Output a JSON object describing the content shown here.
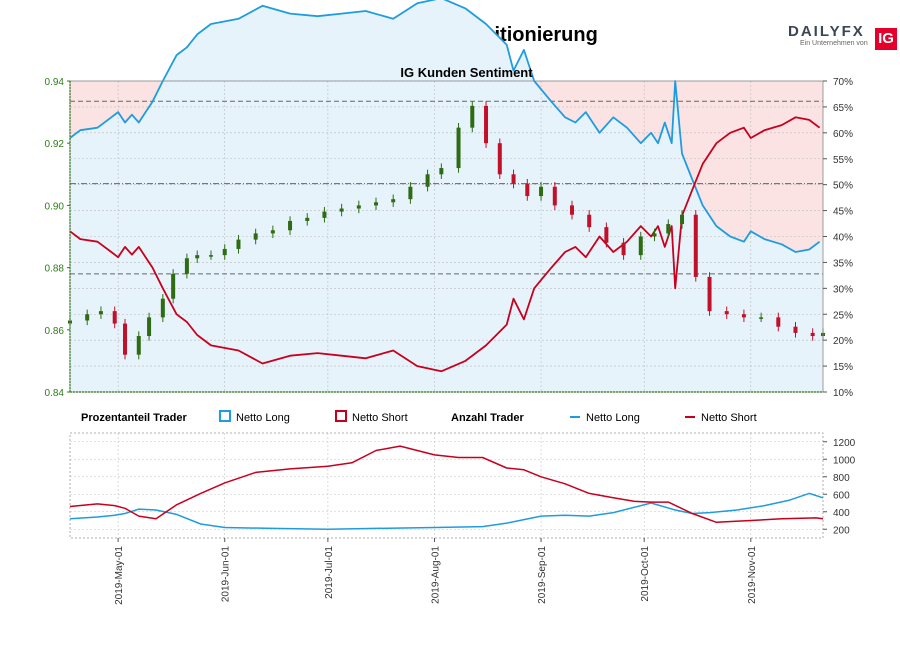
{
  "header": {
    "title": "EUR/GBP Kundenpositionierung",
    "logo_text": "DAILYFX",
    "logo_sub": "Ein Unternehmen von",
    "logo_badge": "IG"
  },
  "legend": {
    "group1": "Prozentanteil Trader",
    "group2": "Anzahl Trader",
    "long": "Netto Long",
    "short": "Netto Short"
  },
  "colors": {
    "long": "#1f9ce0",
    "short": "#c8001e",
    "long_fill": "#e6f3fb",
    "short_fill": "#fbe3e4",
    "axis_left": "#2e7d1a",
    "candle_up": "#2e6b12",
    "candle_down": "#c0102a"
  },
  "chart_data": [
    {
      "type": "line",
      "subtitle": "IG Kunden Sentiment",
      "price_axis": {
        "ylim": [
          0.84,
          0.94
        ],
        "ticks": [
          "0.84",
          "0.86",
          "0.88",
          "0.90",
          "0.92",
          "0.94"
        ]
      },
      "percent_axis": {
        "ylim": [
          10,
          70
        ],
        "ticks": [
          "10%",
          "15%",
          "20%",
          "25%",
          "30%",
          "35%",
          "40%",
          "45%",
          "50%",
          "55%",
          "60%",
          "65%",
          "70%"
        ]
      },
      "x_ticks": [
        "2019-May-01",
        "2019-Jun-01",
        "2019-Jul-01",
        "2019-Aug-01",
        "2019-Sep-01",
        "2019-Oct-01",
        "2019-Nov-01"
      ],
      "x_range": [
        "2019-Apr-17",
        "2019-Nov-22"
      ],
      "reference_lines": [
        {
          "price": 0.9335,
          "style": "dashed"
        },
        {
          "price": 0.907,
          "style": "dash-dot"
        },
        {
          "price": 0.878,
          "style": "dashed"
        }
      ],
      "series": [
        {
          "name": "Netto Long",
          "unit": "%",
          "x": [
            "2019-Apr-17",
            "2019-Apr-20",
            "2019-Apr-25",
            "2019-Apr-29",
            "2019-May-01",
            "2019-May-03",
            "2019-May-05",
            "2019-May-07",
            "2019-May-09",
            "2019-May-11",
            "2019-May-14",
            "2019-May-18",
            "2019-May-21",
            "2019-May-24",
            "2019-May-28",
            "2019-Jun-05",
            "2019-Jun-12",
            "2019-Jun-20",
            "2019-Jun-28",
            "2019-Jul-05",
            "2019-Jul-12",
            "2019-Jul-20",
            "2019-Jul-27",
            "2019-Aug-03",
            "2019-Aug-10",
            "2019-Aug-16",
            "2019-Aug-22",
            "2019-Aug-24",
            "2019-Aug-27",
            "2019-Aug-30",
            "2019-Sep-04",
            "2019-Sep-08",
            "2019-Sep-11",
            "2019-Sep-14",
            "2019-Sep-18",
            "2019-Sep-22",
            "2019-Sep-26",
            "2019-Sep-30",
            "2019-Oct-03",
            "2019-Oct-05",
            "2019-Oct-07",
            "2019-Oct-09",
            "2019-Oct-10",
            "2019-Oct-12",
            "2019-Oct-15",
            "2019-Oct-18",
            "2019-Oct-22",
            "2019-Oct-26",
            "2019-Oct-30",
            "2019-Nov-01",
            "2019-Nov-05",
            "2019-Nov-10",
            "2019-Nov-14",
            "2019-Nov-18",
            "2019-Nov-21"
          ],
          "y": [
            59,
            60.5,
            61,
            63,
            64,
            62,
            63.5,
            62,
            64,
            66,
            70,
            75,
            76.5,
            79,
            81,
            82,
            84.5,
            83,
            82.5,
            83,
            83.5,
            82,
            85,
            86,
            84,
            81,
            77,
            72,
            76,
            70,
            66,
            63,
            62,
            64,
            60,
            63,
            61,
            58,
            60,
            58,
            62,
            58,
            70,
            56,
            51,
            46,
            42,
            40,
            39,
            41,
            39.5,
            38.5,
            37,
            37.5,
            39
          ]
        },
        {
          "name": "Netto Short",
          "unit": "%",
          "x": [
            "2019-Apr-17",
            "2019-Apr-20",
            "2019-Apr-25",
            "2019-Apr-29",
            "2019-May-01",
            "2019-May-03",
            "2019-May-05",
            "2019-May-07",
            "2019-May-09",
            "2019-May-11",
            "2019-May-14",
            "2019-May-18",
            "2019-May-21",
            "2019-May-24",
            "2019-May-28",
            "2019-Jun-05",
            "2019-Jun-12",
            "2019-Jun-20",
            "2019-Jun-28",
            "2019-Jul-05",
            "2019-Jul-12",
            "2019-Jul-20",
            "2019-Jul-27",
            "2019-Aug-03",
            "2019-Aug-10",
            "2019-Aug-16",
            "2019-Aug-22",
            "2019-Aug-24",
            "2019-Aug-27",
            "2019-Aug-30",
            "2019-Sep-04",
            "2019-Sep-08",
            "2019-Sep-11",
            "2019-Sep-14",
            "2019-Sep-18",
            "2019-Sep-22",
            "2019-Sep-26",
            "2019-Sep-30",
            "2019-Oct-03",
            "2019-Oct-05",
            "2019-Oct-07",
            "2019-Oct-09",
            "2019-Oct-10",
            "2019-Oct-12",
            "2019-Oct-15",
            "2019-Oct-18",
            "2019-Oct-22",
            "2019-Oct-26",
            "2019-Oct-30",
            "2019-Nov-01",
            "2019-Nov-05",
            "2019-Nov-10",
            "2019-Nov-14",
            "2019-Nov-18",
            "2019-Nov-21"
          ],
          "y": [
            41,
            39.5,
            39,
            37,
            36,
            38,
            36.5,
            38,
            36,
            34,
            30,
            25,
            23.5,
            21,
            19,
            18,
            15.5,
            17,
            17.5,
            17,
            16.5,
            18,
            15,
            14,
            16,
            19,
            23,
            28,
            24,
            30,
            34,
            37,
            38,
            36,
            40,
            37,
            39,
            42,
            40,
            42,
            38,
            42,
            30,
            44,
            49,
            54,
            58,
            60,
            61,
            59,
            60.5,
            61.5,
            63,
            62.5,
            61
          ]
        },
        {
          "name": "EUR/GBP",
          "type": "candlestick",
          "x": [
            "2019-Apr-17",
            "2019-Apr-22",
            "2019-Apr-26",
            "2019-Apr-30",
            "2019-May-03",
            "2019-May-07",
            "2019-May-10",
            "2019-May-14",
            "2019-May-17",
            "2019-May-21",
            "2019-May-24",
            "2019-May-28",
            "2019-Jun-01",
            "2019-Jun-05",
            "2019-Jun-10",
            "2019-Jun-15",
            "2019-Jun-20",
            "2019-Jun-25",
            "2019-Jun-30",
            "2019-Jul-05",
            "2019-Jul-10",
            "2019-Jul-15",
            "2019-Jul-20",
            "2019-Jul-25",
            "2019-Jul-30",
            "2019-Aug-03",
            "2019-Aug-08",
            "2019-Aug-12",
            "2019-Aug-16",
            "2019-Aug-20",
            "2019-Aug-24",
            "2019-Aug-28",
            "2019-Sep-01",
            "2019-Sep-05",
            "2019-Sep-10",
            "2019-Sep-15",
            "2019-Sep-20",
            "2019-Sep-25",
            "2019-Sep-30",
            "2019-Oct-04",
            "2019-Oct-08",
            "2019-Oct-12",
            "2019-Oct-16",
            "2019-Oct-20",
            "2019-Oct-25",
            "2019-Oct-30",
            "2019-Nov-04",
            "2019-Nov-09",
            "2019-Nov-14",
            "2019-Nov-19",
            "2019-Nov-22"
          ],
          "close": [
            0.863,
            0.865,
            0.866,
            0.862,
            0.852,
            0.858,
            0.864,
            0.87,
            0.878,
            0.883,
            0.884,
            0.884,
            0.886,
            0.889,
            0.891,
            0.892,
            0.895,
            0.896,
            0.898,
            0.899,
            0.9,
            0.901,
            0.902,
            0.906,
            0.91,
            0.912,
            0.925,
            0.932,
            0.92,
            0.91,
            0.907,
            0.903,
            0.906,
            0.9,
            0.897,
            0.893,
            0.888,
            0.884,
            0.89,
            0.891,
            0.894,
            0.897,
            0.877,
            0.866,
            0.865,
            0.864,
            0.864,
            0.861,
            0.859,
            0.858,
            0.859
          ]
        }
      ]
    },
    {
      "type": "line",
      "y_axis": {
        "ylim": [
          100,
          1300
        ],
        "ticks": [
          "200",
          "400",
          "600",
          "800",
          "1000",
          "1200"
        ]
      },
      "series": [
        {
          "name": "Netto Long",
          "x": [
            "2019-Apr-17",
            "2019-Apr-25",
            "2019-Apr-30",
            "2019-May-03",
            "2019-May-07",
            "2019-May-12",
            "2019-May-18",
            "2019-May-25",
            "2019-Jun-01",
            "2019-Jun-15",
            "2019-Jul-01",
            "2019-Jul-15",
            "2019-Aug-01",
            "2019-Aug-15",
            "2019-Aug-22",
            "2019-Aug-27",
            "2019-Sep-01",
            "2019-Sep-08",
            "2019-Sep-15",
            "2019-Sep-22",
            "2019-Sep-28",
            "2019-Oct-03",
            "2019-Oct-10",
            "2019-Oct-15",
            "2019-Oct-20",
            "2019-Oct-28",
            "2019-Nov-05",
            "2019-Nov-12",
            "2019-Nov-18",
            "2019-Nov-22"
          ],
          "y": [
            320,
            340,
            360,
            380,
            430,
            420,
            370,
            260,
            220,
            210,
            200,
            210,
            220,
            230,
            270,
            310,
            350,
            360,
            350,
            390,
            450,
            500,
            420,
            380,
            390,
            420,
            470,
            530,
            610,
            560
          ]
        },
        {
          "name": "Netto Short",
          "x": [
            "2019-Apr-17",
            "2019-Apr-25",
            "2019-Apr-30",
            "2019-May-03",
            "2019-May-07",
            "2019-May-12",
            "2019-May-18",
            "2019-May-25",
            "2019-Jun-01",
            "2019-Jun-10",
            "2019-Jun-20",
            "2019-Jul-01",
            "2019-Jul-08",
            "2019-Jul-15",
            "2019-Jul-22",
            "2019-Aug-01",
            "2019-Aug-08",
            "2019-Aug-15",
            "2019-Aug-22",
            "2019-Aug-27",
            "2019-Sep-01",
            "2019-Sep-08",
            "2019-Sep-15",
            "2019-Sep-22",
            "2019-Sep-28",
            "2019-Oct-03",
            "2019-Oct-08",
            "2019-Oct-15",
            "2019-Oct-22",
            "2019-Nov-01",
            "2019-Nov-10",
            "2019-Nov-20",
            "2019-Nov-22"
          ],
          "y": [
            460,
            490,
            470,
            440,
            350,
            320,
            480,
            610,
            730,
            850,
            890,
            920,
            960,
            1100,
            1150,
            1050,
            1020,
            1020,
            900,
            880,
            800,
            720,
            610,
            560,
            520,
            510,
            510,
            380,
            280,
            300,
            320,
            330,
            320
          ]
        }
      ]
    }
  ]
}
